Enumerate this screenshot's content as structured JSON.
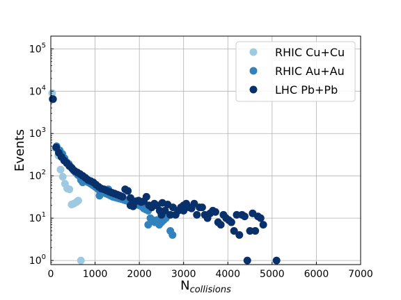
{
  "chart_data": {
    "type": "scatter",
    "title": "",
    "xlabel": "N",
    "xlabel_sub": "collisions",
    "ylabel": "Events",
    "xlim": [
      0,
      7000
    ],
    "ylim": [
      0.8,
      200000
    ],
    "y_scale": "log",
    "grid": true,
    "legend_position": "top-right",
    "x_ticks": [
      {
        "value": 0,
        "label": "0"
      },
      {
        "value": 1000,
        "label": "1000"
      },
      {
        "value": 2000,
        "label": "2000"
      },
      {
        "value": 3000,
        "label": "3000"
      },
      {
        "value": 4000,
        "label": "4000"
      },
      {
        "value": 5000,
        "label": "5000"
      },
      {
        "value": 6000,
        "label": "6000"
      },
      {
        "value": 7000,
        "label": "7000"
      }
    ],
    "y_ticks": [
      {
        "value": 1,
        "base": "10",
        "exp": "0"
      },
      {
        "value": 10,
        "base": "10",
        "exp": "1"
      },
      {
        "value": 100,
        "base": "10",
        "exp": "2"
      },
      {
        "value": 1000,
        "base": "10",
        "exp": "3"
      },
      {
        "value": 10000,
        "base": "10",
        "exp": "4"
      },
      {
        "value": 100000,
        "base": "10",
        "exp": "5"
      }
    ],
    "series": [
      {
        "name": "RHIC Cu+Cu",
        "color": "#9ecae1",
        "points": [
          [
            30,
            9000
          ],
          [
            110,
            450
          ],
          [
            170,
            300
          ],
          [
            220,
            140
          ],
          [
            270,
            95
          ],
          [
            320,
            65
          ],
          [
            370,
            50
          ],
          [
            420,
            48
          ],
          [
            470,
            21
          ],
          [
            520,
            22
          ],
          [
            580,
            24
          ],
          [
            620,
            26
          ],
          [
            680,
            1
          ]
        ]
      },
      {
        "name": "RHIC Au+Au",
        "color": "#3182bd",
        "points": [
          [
            40,
            6500
          ],
          [
            130,
            500
          ],
          [
            200,
            400
          ],
          [
            260,
            330
          ],
          [
            310,
            260
          ],
          [
            360,
            210
          ],
          [
            410,
            190
          ],
          [
            460,
            160
          ],
          [
            510,
            135
          ],
          [
            560,
            120
          ],
          [
            610,
            105
          ],
          [
            660,
            95
          ],
          [
            700,
            80
          ],
          [
            750,
            85
          ],
          [
            800,
            75
          ],
          [
            850,
            70
          ],
          [
            900,
            65
          ],
          [
            950,
            60
          ],
          [
            1000,
            55
          ],
          [
            1050,
            50
          ],
          [
            1100,
            45
          ],
          [
            1150,
            42
          ],
          [
            1200,
            40
          ],
          [
            1250,
            38
          ],
          [
            1300,
            36
          ],
          [
            1350,
            34
          ],
          [
            1400,
            32
          ],
          [
            1450,
            31
          ],
          [
            1500,
            30
          ],
          [
            1550,
            29
          ],
          [
            1600,
            28
          ],
          [
            1650,
            27
          ],
          [
            1700,
            26
          ],
          [
            1750,
            25
          ],
          [
            1800,
            24
          ],
          [
            1850,
            23
          ],
          [
            1900,
            22
          ],
          [
            1950,
            21
          ],
          [
            2000,
            20
          ],
          [
            2050,
            19
          ],
          [
            2100,
            17
          ],
          [
            2150,
            16
          ],
          [
            2200,
            15
          ],
          [
            2250,
            10
          ],
          [
            2300,
            9
          ],
          [
            2350,
            8
          ],
          [
            2400,
            9
          ],
          [
            2450,
            7
          ],
          [
            2500,
            8
          ],
          [
            2550,
            9
          ],
          [
            2600,
            10
          ],
          [
            2700,
            5
          ],
          [
            2750,
            4
          ],
          [
            680,
            80
          ],
          [
            720,
            70
          ],
          [
            1100,
            34
          ],
          [
            1200,
            44
          ],
          [
            1300,
            48
          ],
          [
            1400,
            38
          ],
          [
            2200,
            7
          ]
        ]
      },
      {
        "name": "LHC Pb+Pb",
        "color": "#08306b",
        "points": [
          [
            50,
            6500
          ],
          [
            120,
            470
          ],
          [
            180,
            350
          ],
          [
            240,
            280
          ],
          [
            300,
            230
          ],
          [
            360,
            200
          ],
          [
            420,
            170
          ],
          [
            480,
            150
          ],
          [
            540,
            130
          ],
          [
            600,
            120
          ],
          [
            660,
            110
          ],
          [
            720,
            100
          ],
          [
            780,
            90
          ],
          [
            840,
            80
          ],
          [
            900,
            75
          ],
          [
            960,
            70
          ],
          [
            1020,
            62
          ],
          [
            1080,
            55
          ],
          [
            1140,
            50
          ],
          [
            1200,
            48
          ],
          [
            1260,
            45
          ],
          [
            1320,
            42
          ],
          [
            1380,
            40
          ],
          [
            1440,
            38
          ],
          [
            1500,
            36
          ],
          [
            1560,
            34
          ],
          [
            1620,
            32
          ],
          [
            1680,
            48
          ],
          [
            1740,
            44
          ],
          [
            1800,
            20
          ],
          [
            1860,
            19
          ],
          [
            1920,
            25
          ],
          [
            1980,
            26
          ],
          [
            2040,
            24
          ],
          [
            2100,
            25
          ],
          [
            2160,
            32
          ],
          [
            2220,
            20
          ],
          [
            2280,
            18
          ],
          [
            2340,
            22
          ],
          [
            2400,
            20
          ],
          [
            2460,
            15
          ],
          [
            2520,
            23
          ],
          [
            2580,
            15
          ],
          [
            2640,
            21
          ],
          [
            2700,
            12
          ],
          [
            2760,
            18
          ],
          [
            2820,
            12
          ],
          [
            2880,
            15
          ],
          [
            2940,
            18
          ],
          [
            3000,
            20
          ],
          [
            3060,
            22
          ],
          [
            3120,
            18
          ],
          [
            3180,
            17
          ],
          [
            3240,
            22
          ],
          [
            3300,
            12
          ],
          [
            3360,
            18
          ],
          [
            3420,
            18
          ],
          [
            3480,
            12
          ],
          [
            3540,
            10
          ],
          [
            3600,
            13
          ],
          [
            3660,
            15
          ],
          [
            3720,
            14
          ],
          [
            3780,
            8
          ],
          [
            3840,
            7
          ],
          [
            3900,
            12
          ],
          [
            3960,
            10
          ],
          [
            4020,
            9
          ],
          [
            4080,
            8
          ],
          [
            4140,
            5
          ],
          [
            4200,
            12
          ],
          [
            4260,
            4
          ],
          [
            4320,
            12
          ],
          [
            4380,
            11
          ],
          [
            4440,
            1
          ],
          [
            4500,
            5
          ],
          [
            4560,
            13
          ],
          [
            4620,
            5
          ],
          [
            4680,
            11
          ],
          [
            4740,
            10
          ],
          [
            4800,
            7
          ],
          [
            5100,
            1
          ],
          [
            3000,
            15
          ],
          [
            2500,
            12
          ],
          [
            1800,
            30
          ]
        ]
      }
    ]
  }
}
